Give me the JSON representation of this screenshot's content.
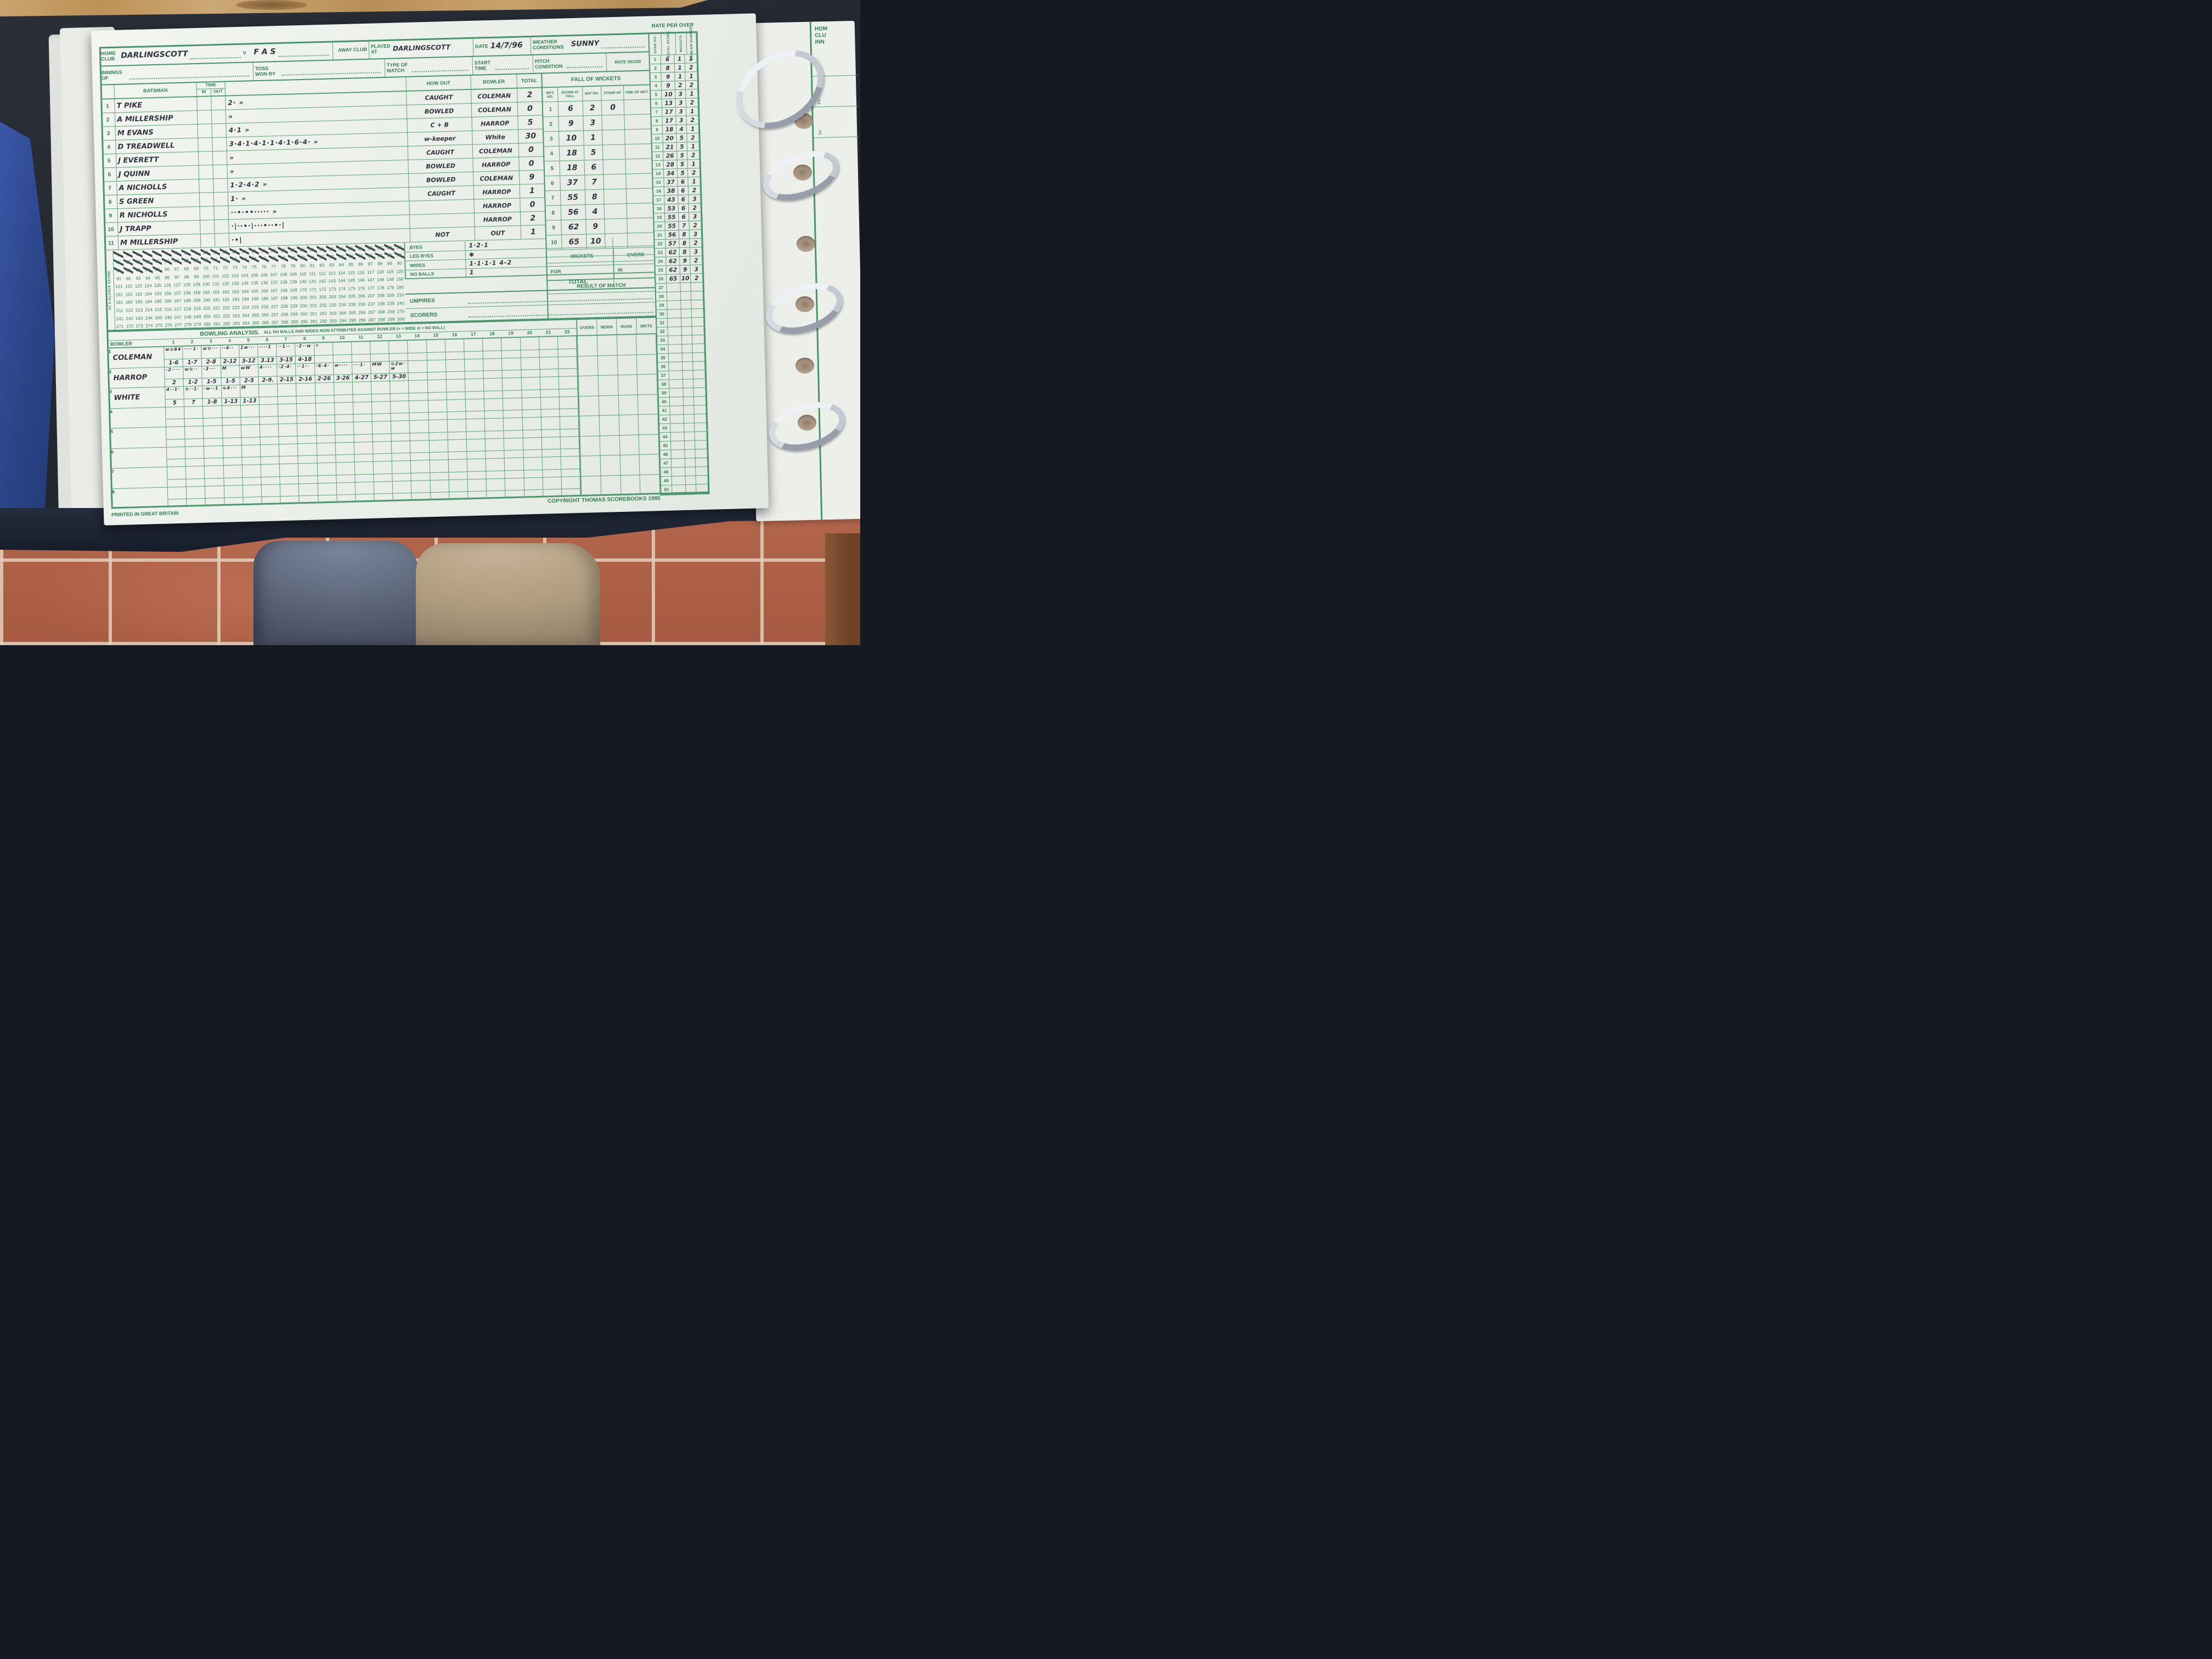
{
  "colors": {
    "form_green": "#2e7d4e",
    "line_green": "#5aa274",
    "ink": "#32323f",
    "paper": "#eef1ec",
    "binder_blue": "#2b4488",
    "tile_terracotta": "#b2664c"
  },
  "header": {
    "home_club_label": "HOME CLUB",
    "home_club": "DARLINGSCOTT",
    "versus": "v",
    "away_club": "F A S",
    "away_club_label": "AWAY CLUB",
    "played_at_label": "PLAYED AT",
    "played_at": "DARLINGSCOTT",
    "date_label": "DATE",
    "date": "14/7/96",
    "weather_label": "WEATHER CONDITIONS",
    "weather": "SUNNY",
    "innings_label": "INNINGS OF",
    "innings_of": "",
    "toss_label": "TOSS WON BY",
    "toss": "",
    "type_label": "TYPE OF MATCH",
    "type": "",
    "start_label": "START TIME",
    "start": "",
    "pitch_label": "PITCH CONDITION",
    "pitch": "",
    "rate_label": "RATE 50/100",
    "rate_per_over_title": "RATE PER OVER"
  },
  "batting": {
    "batsman_label": "BATSMAN",
    "time_label": "TIME",
    "in_label": "IN",
    "out_label": "OUT",
    "how_out_label": "HOW OUT",
    "bowler_label": "BOWLER",
    "total_label": "TOTAL",
    "rows": [
      {
        "no": "1",
        "name": "T PIKE",
        "runs": "2·  »",
        "how_out": "CAUGHT",
        "bowler": "COLEMAN",
        "total": "2"
      },
      {
        "no": "2",
        "name": "A MILLERSHIP",
        "runs": "»",
        "how_out": "BOWLED",
        "bowler": "COLEMAN",
        "total": "0"
      },
      {
        "no": "3",
        "name": "M EVANS",
        "runs": "4·1  »",
        "how_out": "C + B",
        "bowler": "HARROP",
        "total": "5"
      },
      {
        "no": "4",
        "name": "D TREADWELL",
        "runs": "3·4·1·4·1·1·4·1·6·4·  »",
        "how_out": "w-keeper",
        "bowler": "White",
        "total": "30"
      },
      {
        "no": "5",
        "name": "J EVERETT",
        "runs": "»",
        "how_out": "CAUGHT",
        "bowler": "COLEMAN",
        "total": "0"
      },
      {
        "no": "6",
        "name": "J QUINN",
        "runs": "»",
        "how_out": "BOWLED",
        "bowler": "HARROP",
        "total": "0"
      },
      {
        "no": "7",
        "name": "A NICHOLLS",
        "runs": "1·2·4·2  »",
        "how_out": "BOWLED",
        "bowler": "COLEMAN",
        "total": "9"
      },
      {
        "no": "8",
        "name": "S GREEN",
        "runs": "1·  »",
        "how_out": "CAUGHT",
        "bowler": "HARROP",
        "total": "1"
      },
      {
        "no": "9",
        "name": "R NICHOLLS",
        "runs": "··•·••·····  »",
        "how_out": "",
        "bowler": "HARROP",
        "total": "0"
      },
      {
        "no": "10",
        "name": "J TRAPP",
        "runs": "·|··•·|···•··•·|",
        "how_out": "",
        "bowler": "HARROP",
        "total": "2"
      },
      {
        "no": "11",
        "name": "M MILLERSHIP",
        "runs": "·•|",
        "how_out": "NOT",
        "bowler": "OUT",
        "total": "1"
      }
    ]
  },
  "extras": {
    "byes_label": "BYES",
    "byes": "1·2·1",
    "leg_byes_label": "LEG BYES",
    "leg_byes": "✱",
    "wides_label": "WIDES",
    "wides": "1·1·1·1 4-2",
    "no_balls_label": "NO BALLS",
    "no_balls": "1",
    "total_label": "TOTAL",
    "total": ""
  },
  "fall_of_wickets": {
    "title": "FALL OF WICKETS",
    "headers": [
      "WKT. NO.",
      "SCORE AT FALL",
      "BAT NO.",
      "STAND OF",
      "TIME OF WKT."
    ],
    "rows": [
      {
        "wkt": "1",
        "score": "6",
        "bat": "2",
        "stand": "0",
        "time": ""
      },
      {
        "wkt": "2",
        "score": "9",
        "bat": "3",
        "stand": "",
        "time": ""
      },
      {
        "wkt": "3",
        "score": "10",
        "bat": "1",
        "stand": "",
        "time": ""
      },
      {
        "wkt": "4",
        "score": "18",
        "bat": "5",
        "stand": "",
        "time": ""
      },
      {
        "wkt": "5",
        "score": "18",
        "bat": "6",
        "stand": "",
        "time": ""
      },
      {
        "wkt": "6",
        "score": "37",
        "bat": "7",
        "stand": "",
        "time": ""
      },
      {
        "wkt": "7",
        "score": "55",
        "bat": "8",
        "stand": "",
        "time": ""
      },
      {
        "wkt": "8",
        "score": "56",
        "bat": "4",
        "stand": "",
        "time": ""
      },
      {
        "wkt": "9",
        "score": "62",
        "bat": "9",
        "stand": "",
        "time": ""
      },
      {
        "wkt": "10",
        "score": "65",
        "bat": "10",
        "stand": "",
        "time": ""
      }
    ]
  },
  "rate_per_over": {
    "headers": [
      "OVER NO.",
      "TOTAL SCORE",
      "WICKETS",
      "BOWLER NUMBER"
    ],
    "total_rows": 50,
    "rows": [
      {
        "score": "6",
        "wkts": "1",
        "bwl": "1"
      },
      {
        "score": "8",
        "wkts": "1",
        "bwl": "2"
      },
      {
        "score": "9",
        "wkts": "1",
        "bwl": "1"
      },
      {
        "score": "9",
        "wkts": "2",
        "bwl": "2"
      },
      {
        "score": "10",
        "wkts": "3",
        "bwl": "1"
      },
      {
        "score": "13",
        "wkts": "3",
        "bwl": "2"
      },
      {
        "score": "17",
        "wkts": "3",
        "bwl": "1"
      },
      {
        "score": "17",
        "wkts": "3",
        "bwl": "2"
      },
      {
        "score": "18",
        "wkts": "4",
        "bwl": "1"
      },
      {
        "score": "20",
        "wkts": "5",
        "bwl": "2"
      },
      {
        "score": "21",
        "wkts": "5",
        "bwl": "1"
      },
      {
        "score": "26",
        "wkts": "5",
        "bwl": "2"
      },
      {
        "score": "28",
        "wkts": "5",
        "bwl": "1"
      },
      {
        "score": "34",
        "wkts": "5",
        "bwl": "2"
      },
      {
        "score": "37",
        "wkts": "6",
        "bwl": "1"
      },
      {
        "score": "38",
        "wkts": "6",
        "bwl": "2"
      },
      {
        "score": "43",
        "wkts": "6",
        "bwl": "3"
      },
      {
        "score": "53",
        "wkts": "6",
        "bwl": "2"
      },
      {
        "score": "55",
        "wkts": "6",
        "bwl": "3"
      },
      {
        "score": "55",
        "wkts": "7",
        "bwl": "2"
      },
      {
        "score": "56",
        "wkts": "8",
        "bwl": "3"
      },
      {
        "score": "57",
        "wkts": "8",
        "bwl": "2"
      },
      {
        "score": "62",
        "wkts": "8",
        "bwl": "3"
      },
      {
        "score": "62",
        "wkts": "9",
        "bwl": "2"
      },
      {
        "score": "62",
        "wkts": "9",
        "bwl": "3"
      },
      {
        "score": "65",
        "wkts": "10",
        "bwl": "2"
      }
    ]
  },
  "glance": {
    "label": "AT A GLANCE SCORE",
    "max": 300,
    "per_row": 30,
    "crossed_through": 65
  },
  "panels": {
    "wickets_label": "WICKETS",
    "for_label": "FOR",
    "overs_label": "OVERS",
    "in_label": "IN",
    "result_label": "RESULT OF MATCH",
    "umpires_label": "UMPIRES",
    "scorers_label": "SCORERS"
  },
  "bowling": {
    "title": "BOWLING ANALYSIS.",
    "note": "ALL NO BALLS AND WIDES NOW ATTRIBUTED AGAINST BOWLER (+ = WIDE ⊙ = NO BALL)",
    "bowler_label": "BOWLER",
    "over_columns": 22,
    "rows_total": 8,
    "summary_headers": [
      "OVERS",
      "MDNS",
      "RUNS",
      "WKTS"
    ],
    "bowlers": [
      {
        "name": "COLEMAN",
        "overs": [
          {
            "b": "w⊙84",
            "c": "1-6"
          },
          {
            "b": "····1·",
            "c": "1-7"
          },
          {
            "b": "w⊙···",
            "c": "2-8"
          },
          {
            "b": "··4··",
            "c": "2-12"
          },
          {
            "b": "1w···",
            "c": "3-12"
          },
          {
            "b": "····1",
            "c": "3.13"
          },
          {
            "b": "··1··",
            "c": "3-15"
          },
          {
            "b": "·2··w",
            "c": "4-18"
          },
          {
            "b": "✕",
            "c": ""
          }
        ]
      },
      {
        "name": "HARROP",
        "overs": [
          {
            "b": "·2····",
            "c": "2"
          },
          {
            "b": "w⊙··",
            "c": "1-2"
          },
          {
            "b": "·3···",
            "c": "1-5"
          },
          {
            "b": "M",
            "c": "1-5"
          },
          {
            "b": "wW",
            "c": "2-5"
          },
          {
            "b": "4····",
            "c": "2-9."
          },
          {
            "b": "·2·4·",
            "c": "2-15"
          },
          {
            "b": "··1··",
            "c": "2-16"
          },
          {
            "b": "·6·4·",
            "c": "2·26"
          },
          {
            "b": "w····",
            "c": "3·26"
          },
          {
            "b": "···1·",
            "c": "4-27"
          },
          {
            "b": "MW",
            "c": "5-27"
          },
          {
            "b": "⊙2w·w",
            "c": "5-30"
          }
        ]
      },
      {
        "name": "WHITE",
        "overs": [
          {
            "b": "4··1·",
            "c": "5"
          },
          {
            "b": "⊙··1·",
            "c": "7"
          },
          {
            "b": "·w··1",
            "c": "1-8"
          },
          {
            "b": "⊙4···",
            "c": "1-13"
          },
          {
            "b": "M",
            "c": "1-13"
          }
        ]
      }
    ]
  },
  "footer": {
    "printed": "PRINTED IN GREAT BRITAIN",
    "copyright": "COPYRIGHT THOMAS SCOREBOOKS 1985"
  },
  "edge_page": {
    "labels": [
      "HOM",
      "CLU",
      "INN"
    ],
    "row_numbers": [
      "1",
      "2",
      "3"
    ]
  }
}
